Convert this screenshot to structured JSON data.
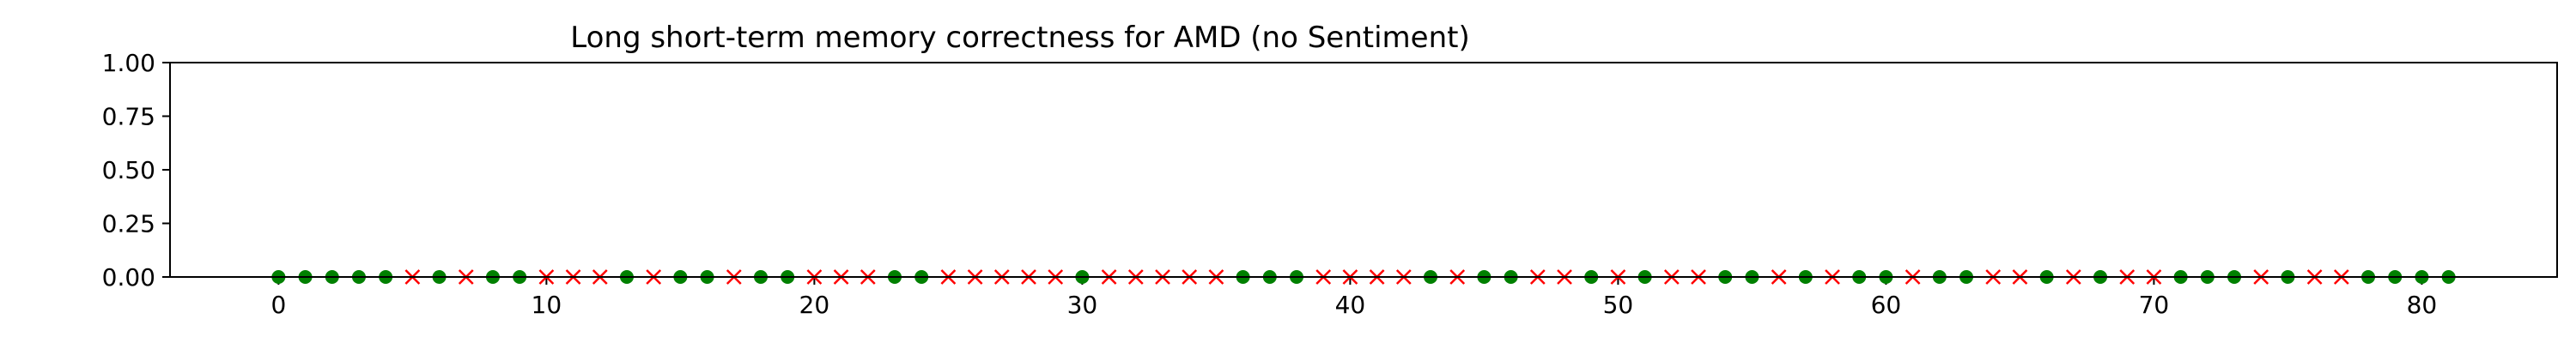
{
  "chart_data": {
    "type": "scatter",
    "title": "Long short-term memory correctness for AMD (no Sentiment)",
    "xlabel": "",
    "ylabel": "",
    "xlim": [
      -4.05,
      85.05
    ],
    "ylim": [
      0,
      1
    ],
    "x_ticks": [
      0,
      10,
      20,
      30,
      40,
      50,
      60,
      70,
      80
    ],
    "y_ticks": [
      "0.00",
      "0.25",
      "0.50",
      "0.75",
      "1.00"
    ],
    "grid": false,
    "legend": "none",
    "series": [
      {
        "marker": "circle",
        "color": "#008000",
        "x": [
          0,
          1,
          2,
          3,
          4,
          6,
          8,
          9,
          13,
          15,
          16,
          18,
          19,
          23,
          24,
          30,
          36,
          37,
          38,
          43,
          45,
          46,
          49,
          51,
          54,
          55,
          57,
          59,
          60,
          62,
          63,
          66,
          68,
          71,
          72,
          73,
          75,
          78,
          79,
          80,
          81
        ],
        "y": [
          0,
          0,
          0,
          0,
          0,
          0,
          0,
          0,
          0,
          0,
          0,
          0,
          0,
          0,
          0,
          0,
          0,
          0,
          0,
          0,
          0,
          0,
          0,
          0,
          0,
          0,
          0,
          0,
          0,
          0,
          0,
          0,
          0,
          0,
          0,
          0,
          0,
          0,
          0,
          0,
          0
        ]
      },
      {
        "marker": "x",
        "color": "#ff0000",
        "x": [
          5,
          7,
          10,
          11,
          12,
          14,
          17,
          20,
          21,
          22,
          25,
          26,
          27,
          28,
          29,
          31,
          32,
          33,
          34,
          35,
          39,
          40,
          41,
          42,
          44,
          47,
          48,
          50,
          52,
          53,
          56,
          58,
          61,
          64,
          65,
          67,
          69,
          70,
          74,
          76,
          77
        ],
        "y": [
          0,
          0,
          0,
          0,
          0,
          0,
          0,
          0,
          0,
          0,
          0,
          0,
          0,
          0,
          0,
          0,
          0,
          0,
          0,
          0,
          0,
          0,
          0,
          0,
          0,
          0,
          0,
          0,
          0,
          0,
          0,
          0,
          0,
          0,
          0,
          0,
          0,
          0,
          0,
          0,
          0
        ]
      }
    ]
  }
}
